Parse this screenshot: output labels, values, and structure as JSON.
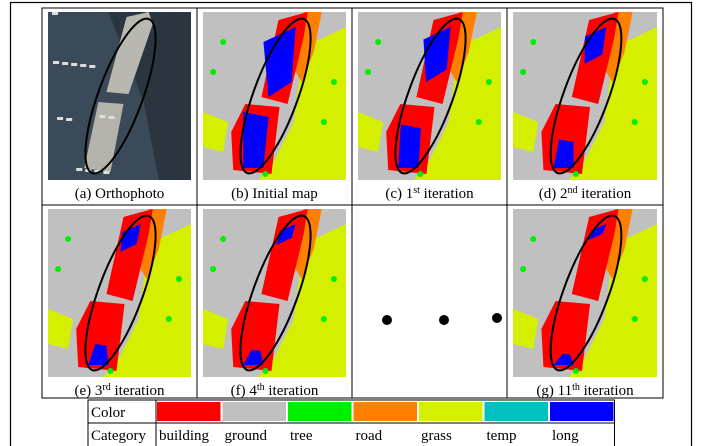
{
  "figure": {
    "panels": [
      {
        "caption": {
          "prefix": "(a) Orthophoto"
        }
      },
      {
        "caption": {
          "prefix": "(b) Initial map"
        }
      },
      {
        "caption": {
          "prefix": "(c) 1",
          "sup": "st",
          "suffix": " iteration"
        }
      },
      {
        "caption": {
          "prefix": "(d) 2",
          "sup": "nd",
          "suffix": " iteration"
        }
      },
      {
        "caption": {
          "prefix": "(e) 3",
          "sup": "rd",
          "suffix": " iteration"
        }
      },
      {
        "caption": {
          "prefix": "(f) 4",
          "sup": "th",
          "suffix": " iteration"
        }
      },
      {
        "caption": {
          "prefix": "(g) 11",
          "sup": "th",
          "suffix": " iteration"
        }
      }
    ],
    "legend": {
      "color_label": "Color",
      "category_label": "Category",
      "items": [
        {
          "name": "building",
          "color": "#ff0000"
        },
        {
          "name": "ground",
          "color": "#c0c0c0"
        },
        {
          "name": "tree",
          "color": "#00ee00"
        },
        {
          "name": "road",
          "color": "#ff8000"
        },
        {
          "name": "grass",
          "color": "#d4f000"
        },
        {
          "name": "temp",
          "color": "#00c0c0"
        },
        {
          "name": "long",
          "color": "#0000ff"
        }
      ]
    }
  }
}
